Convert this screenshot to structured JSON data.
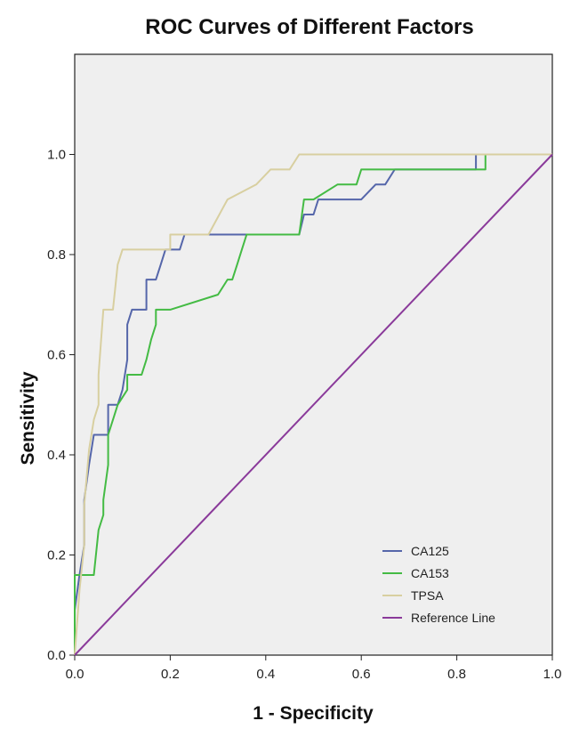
{
  "chart_data": {
    "type": "line",
    "title": "ROC Curves of Different Factors",
    "xlabel": "1 - Specificity",
    "ylabel": "Sensitivity",
    "xlim": [
      0,
      1
    ],
    "ylim": [
      0,
      1.2
    ],
    "xticks": [
      "0.0",
      "0.2",
      "0.4",
      "0.6",
      "0.8",
      "1.0"
    ],
    "yticks": [
      "0.0",
      "0.2",
      "0.4",
      "0.6",
      "0.8",
      "1.0"
    ],
    "background_color": "#efefef",
    "grid": false,
    "legend_position": "bottom-right",
    "series": [
      {
        "name": "CA125",
        "color": "#5566aa",
        "points": [
          [
            0,
            0
          ],
          [
            0,
            0.09
          ],
          [
            0.01,
            0.16
          ],
          [
            0.02,
            0.22
          ],
          [
            0.02,
            0.31
          ],
          [
            0.03,
            0.38
          ],
          [
            0.04,
            0.44
          ],
          [
            0.07,
            0.44
          ],
          [
            0.07,
            0.5
          ],
          [
            0.09,
            0.5
          ],
          [
            0.1,
            0.53
          ],
          [
            0.11,
            0.59
          ],
          [
            0.11,
            0.66
          ],
          [
            0.12,
            0.69
          ],
          [
            0.15,
            0.69
          ],
          [
            0.15,
            0.75
          ],
          [
            0.17,
            0.75
          ],
          [
            0.18,
            0.78
          ],
          [
            0.19,
            0.81
          ],
          [
            0.22,
            0.81
          ],
          [
            0.23,
            0.84
          ],
          [
            0.33,
            0.84
          ],
          [
            0.35,
            0.84
          ],
          [
            0.47,
            0.84
          ],
          [
            0.48,
            0.88
          ],
          [
            0.5,
            0.88
          ],
          [
            0.51,
            0.91
          ],
          [
            0.6,
            0.91
          ],
          [
            0.63,
            0.94
          ],
          [
            0.65,
            0.94
          ],
          [
            0.67,
            0.97
          ],
          [
            0.84,
            0.97
          ],
          [
            0.84,
            1.0
          ],
          [
            1,
            1
          ]
        ]
      },
      {
        "name": "CA153",
        "color": "#44bb44",
        "points": [
          [
            0,
            0
          ],
          [
            0,
            0.16
          ],
          [
            0.04,
            0.16
          ],
          [
            0.05,
            0.25
          ],
          [
            0.06,
            0.28
          ],
          [
            0.06,
            0.31
          ],
          [
            0.07,
            0.38
          ],
          [
            0.07,
            0.44
          ],
          [
            0.08,
            0.47
          ],
          [
            0.09,
            0.5
          ],
          [
            0.11,
            0.53
          ],
          [
            0.11,
            0.56
          ],
          [
            0.14,
            0.56
          ],
          [
            0.15,
            0.59
          ],
          [
            0.16,
            0.63
          ],
          [
            0.17,
            0.66
          ],
          [
            0.17,
            0.69
          ],
          [
            0.2,
            0.69
          ],
          [
            0.3,
            0.72
          ],
          [
            0.32,
            0.75
          ],
          [
            0.33,
            0.75
          ],
          [
            0.34,
            0.78
          ],
          [
            0.35,
            0.81
          ],
          [
            0.36,
            0.84
          ],
          [
            0.47,
            0.84
          ],
          [
            0.48,
            0.91
          ],
          [
            0.5,
            0.91
          ],
          [
            0.55,
            0.94
          ],
          [
            0.59,
            0.94
          ],
          [
            0.6,
            0.97
          ],
          [
            0.86,
            0.97
          ],
          [
            0.86,
            1.0
          ],
          [
            1,
            1
          ]
        ]
      },
      {
        "name": "TPSA",
        "color": "#d8cfa0",
        "points": [
          [
            0,
            0
          ],
          [
            0.01,
            0.13
          ],
          [
            0.02,
            0.22
          ],
          [
            0.02,
            0.3
          ],
          [
            0.03,
            0.41
          ],
          [
            0.04,
            0.47
          ],
          [
            0.05,
            0.5
          ],
          [
            0.05,
            0.56
          ],
          [
            0.06,
            0.69
          ],
          [
            0.08,
            0.69
          ],
          [
            0.09,
            0.78
          ],
          [
            0.1,
            0.81
          ],
          [
            0.2,
            0.81
          ],
          [
            0.2,
            0.84
          ],
          [
            0.28,
            0.84
          ],
          [
            0.32,
            0.91
          ],
          [
            0.38,
            0.94
          ],
          [
            0.41,
            0.97
          ],
          [
            0.45,
            0.97
          ],
          [
            0.47,
            1.0
          ],
          [
            1,
            1
          ]
        ]
      },
      {
        "name": "Reference Line",
        "color": "#8a3a9a",
        "points": [
          [
            0,
            0
          ],
          [
            1,
            1
          ]
        ]
      }
    ]
  }
}
